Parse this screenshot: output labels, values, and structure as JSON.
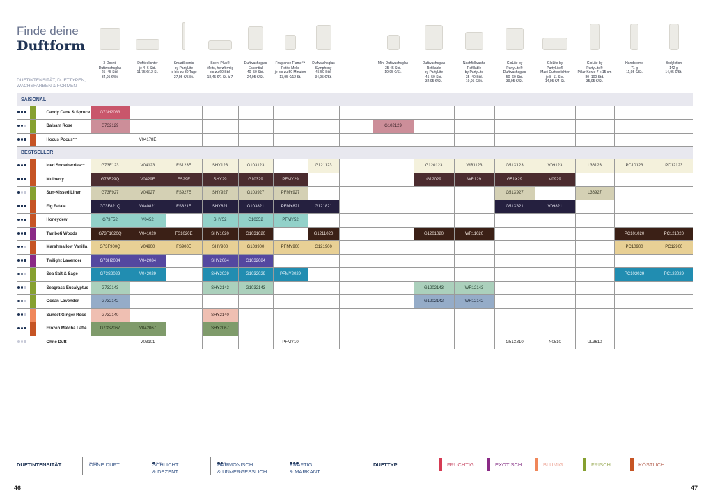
{
  "title": {
    "line1": "Finde deine",
    "line2": "Duftform"
  },
  "subtitle": "Duftintensität, Dufttypen, Wachsfarben & Formen",
  "products": [
    {
      "lines": [
        "3-Docht-",
        "Duftwachsglas",
        "25–45 Std.",
        "34,95 €/St."
      ]
    },
    {
      "lines": [
        "Duftteelichter",
        "je 4–6 Std.",
        "11,75 €/12 St."
      ]
    },
    {
      "lines": [
        "SmartScents",
        "by PartyLite",
        "je bis zu 30 Tage",
        "27,95 €/5 St."
      ]
    },
    {
      "lines": [
        "Scent Plus®",
        "Melts, herzförmig",
        "bis zu 60 Std.",
        "18,45 €/1 St. à 7"
      ]
    },
    {
      "lines": [
        "Duftwachsglas",
        "Essential",
        "40–50 Std.",
        "24,95 €/St."
      ]
    },
    {
      "lines": [
        "Fragrance Flame™",
        "Petite Melts",
        "je bis zu 50 Minuten",
        "13,95 €/12 St."
      ]
    },
    {
      "lines": [
        "Duftwachsglas",
        "Symphony",
        "45-50 Std.",
        "34,95 €/St."
      ]
    },
    {
      "lines": []
    },
    {
      "lines": [
        "Mini-Duftwachsglas",
        "35-45 Std.",
        "19,95 €/St."
      ]
    },
    {
      "lines": [
        "Duftwachsglas",
        "Refillable",
        "by PartyLite",
        "45–50 Std.",
        "32,95 €/St."
      ]
    },
    {
      "lines": [
        "Nachfüllwachs",
        "Refillable",
        "by PartyLite",
        "35–40 Std.",
        "19,95 €/St."
      ]
    },
    {
      "lines": [
        "GloLite by",
        "PartyLite®",
        "Duftwachsglas",
        "50–60 Std.",
        "39,95 €/St."
      ]
    },
    {
      "lines": [
        "GloLite by",
        "PartyLite®",
        "Maxi-Duftteelichter",
        "je 8–11 Std.",
        "14,95 €/4 St."
      ]
    },
    {
      "lines": [
        "GloLite by",
        "PartyLite®",
        "Pillar-Kerze 7 x 15 cm",
        "80–100 Std.",
        "35,95 €/St."
      ]
    },
    {
      "lines": [
        "Handcreme",
        "71 g",
        "11,95 €/St."
      ]
    },
    {
      "lines": [
        "Bodylotion",
        "142 g",
        "14,95 €/St."
      ]
    }
  ],
  "sections": [
    {
      "label": "SAISONAL",
      "rows": [
        {
          "name": "Candy Cane & Spruce",
          "intensity": 3,
          "type": "frisch",
          "color": "#c9566b",
          "text": "#f4e0e4",
          "codes": [
            "G73H2083",
            "",
            "",
            "",
            "",
            "",
            "",
            "",
            "",
            "",
            "",
            "",
            "",
            "",
            "",
            ""
          ]
        },
        {
          "name": "Balsam Rose",
          "intensity": 2,
          "type": "frisch",
          "color": "#cc8e99",
          "text": "#3a2228",
          "codes": [
            "G732129",
            "",
            "",
            "",
            "",
            "",
            "",
            "",
            "G102129",
            "",
            "",
            "",
            "",
            "",
            "",
            ""
          ]
        },
        {
          "name": "Hocus Pocus™",
          "intensity": 3,
          "type": "koestlich",
          "color": "#ffffff",
          "text": "#222",
          "codes": [
            "",
            "V04178E",
            "",
            "",
            "",
            "",
            "",
            "",
            "",
            "",
            "",
            "",
            "",
            "",
            "",
            ""
          ]
        }
      ]
    },
    {
      "label": "BESTSELLER",
      "rows": [
        {
          "name": "Iced Snowberries™",
          "intensity": 3,
          "type": "koestlich",
          "color": "#f4f1dc",
          "text": "#3a3a3a",
          "codes": [
            "G73F123",
            "V04123",
            "FS123E",
            "SHY123",
            "G103123",
            "",
            "G121123",
            "",
            "",
            "G120123",
            "WR1123",
            "G51X123",
            "V09123",
            "L36123",
            "PC10123",
            "PC12123"
          ]
        },
        {
          "name": "Mulberry",
          "intensity": 3,
          "type": "koestlich",
          "color": "#4b2c2f",
          "text": "#f0e6e6",
          "codes": [
            "G73F29Q",
            "V0429E",
            "FS29E",
            "SHY29",
            "G10329",
            "PFMY29",
            "",
            "",
            "",
            "G12029",
            "WR129",
            "G51X29",
            "V0929",
            "",
            "",
            ""
          ]
        },
        {
          "name": "Sun-Kissed Linen",
          "intensity": 1,
          "type": "frisch",
          "color": "#d4d0b4",
          "text": "#3a3a2a",
          "codes": [
            "G73F927",
            "V04927",
            "FS927E",
            "SHY927",
            "G103927",
            "PFMY927",
            "",
            "",
            "",
            "",
            "",
            "G51X927",
            "",
            "L36927",
            "",
            ""
          ]
        },
        {
          "name": "Fig Fatale",
          "intensity": 3,
          "type": "koestlich",
          "color": "#25203f",
          "text": "#e8e6f2",
          "codes": [
            "G73F821Q",
            "V040821",
            "FS821E",
            "SHY821",
            "G103821",
            "PFMY821",
            "G121821",
            "",
            "",
            "",
            "",
            "G51X821",
            "V09821",
            "",
            "",
            ""
          ]
        },
        {
          "name": "Honeydew",
          "intensity": 3,
          "type": "koestlich",
          "color": "#92d1c9",
          "text": "#1f3a3a",
          "codes": [
            "G73F52",
            "V0452",
            "",
            "SHY52",
            "G10352",
            "PFMY52",
            "",
            "",
            "",
            "",
            "",
            "",
            "",
            "",
            "",
            ""
          ]
        },
        {
          "name": "Tamboti Woods",
          "intensity": 3,
          "type": "exotisch",
          "color": "#3b2016",
          "text": "#f0e4dc",
          "codes": [
            "G73F1020Q",
            "V041020",
            "FS1020E",
            "SHY1020",
            "G1031020",
            "",
            "G1211020",
            "",
            "",
            "G1201020",
            "WR11020",
            "",
            "",
            "",
            "PC101020",
            "PC121020"
          ]
        },
        {
          "name": "Marshmallow Vanilla",
          "intensity": 2,
          "type": "koestlich",
          "color": "#e8d095",
          "text": "#3a2e14",
          "codes": [
            "G73F900Q",
            "V04900",
            "FS900E",
            "SHY900",
            "G103900",
            "PFMY900",
            "G121900",
            "",
            "",
            "",
            "",
            "",
            "",
            "",
            "PC10900",
            "PC12900"
          ]
        },
        {
          "name": "Twilight Lavender",
          "intensity": 3,
          "type": "exotisch",
          "color": "#5448a0",
          "text": "#ecebfa",
          "codes": [
            "G73H2084",
            "V042084",
            "",
            "SHY2084",
            "G1032084",
            "",
            "",
            "",
            "",
            "",
            "",
            "",
            "",
            "",
            "",
            ""
          ]
        },
        {
          "name": "Sea Salt & Sage",
          "intensity": 2,
          "type": "frisch",
          "color": "#218db1",
          "text": "#e6f4fa",
          "codes": [
            "G73S2029",
            "V042029",
            "",
            "SHY2029",
            "G1032029",
            "PFMY2029",
            "",
            "",
            "",
            "",
            "",
            "",
            "",
            "",
            "PC102029",
            "PC122029"
          ]
        },
        {
          "name": "Seagrass Eucalyptus",
          "intensity": 2,
          "type": "frisch",
          "color": "#abd0bc",
          "text": "#1f3a2a",
          "codes": [
            "G732143",
            "",
            "",
            "SHY2143",
            "G1032143",
            "",
            "",
            "",
            "",
            "G1202143",
            "WR12143",
            "",
            "",
            "",
            "",
            ""
          ]
        },
        {
          "name": "Ocean Lavender",
          "intensity": 2,
          "type": "frisch",
          "color": "#95acc8",
          "text": "#1f2a3a",
          "codes": [
            "G732142",
            "",
            "",
            "",
            "",
            "",
            "",
            "",
            "",
            "G1202142",
            "WR12142",
            "",
            "",
            "",
            "",
            ""
          ]
        },
        {
          "name": "Sunset Ginger Rose",
          "intensity": 2,
          "type": "blumig",
          "color": "#efbfb2",
          "text": "#3a2420",
          "codes": [
            "G732140",
            "",
            "",
            "SHY2140",
            "",
            "",
            "",
            "",
            "",
            "",
            "",
            "",
            "",
            "",
            "",
            ""
          ]
        },
        {
          "name": "Frozen Matcha Latte",
          "intensity": 3,
          "type": "koestlich",
          "color": "#7f9b6b",
          "text": "#1f2a14",
          "codes": [
            "G73S2067",
            "V042067",
            "",
            "SHY2067",
            "",
            "",
            "",
            "",
            "",
            "",
            "",
            "",
            "",
            "",
            "",
            ""
          ]
        },
        {
          "name": "Ohne Duft",
          "intensity": 0,
          "type": "none",
          "color": "#ffffff",
          "text": "#222",
          "codes": [
            "",
            "V03101",
            "",
            "",
            "",
            "PFMY10",
            "",
            "",
            "",
            "",
            "",
            "G51X810",
            "N0510",
            "UL3610",
            "",
            ""
          ]
        }
      ]
    }
  ],
  "type_colors": {
    "fruchtig": "#d63b54",
    "exotisch": "#8a2a86",
    "blumig": "#f0875a",
    "frisch": "#86a030",
    "koestlich": "#c65424",
    "none": "#ffffff"
  },
  "legend": {
    "intensity_label": "DUFTINTENSITÄT",
    "levels": [
      {
        "n": 0,
        "line1": "OHNE DUFT",
        "line2": ""
      },
      {
        "n": 1,
        "line1": "SCHLICHT",
        "line2": "& DEZENT"
      },
      {
        "n": 2,
        "line1": "HARMONISCH",
        "line2": "& UNVERGESSLICH"
      },
      {
        "n": 3,
        "line1": "KRÄFTIG",
        "line2": "& MARKANT"
      }
    ],
    "type_label": "DUFTTYP",
    "types": [
      {
        "key": "fruchtig",
        "label": "FRUCHTIG",
        "text": "#c9506a"
      },
      {
        "key": "exotisch",
        "label": "EXOTISCH",
        "text": "#8a3a8a"
      },
      {
        "key": "blumig",
        "label": "BLUMIG",
        "text": "#eea89a"
      },
      {
        "key": "frisch",
        "label": "FRISCH",
        "text": "#a0b060"
      },
      {
        "key": "koestlich",
        "label": "KÖSTLICH",
        "text": "#b86a5a"
      }
    ]
  },
  "pages": {
    "left": "46",
    "right": "47"
  }
}
